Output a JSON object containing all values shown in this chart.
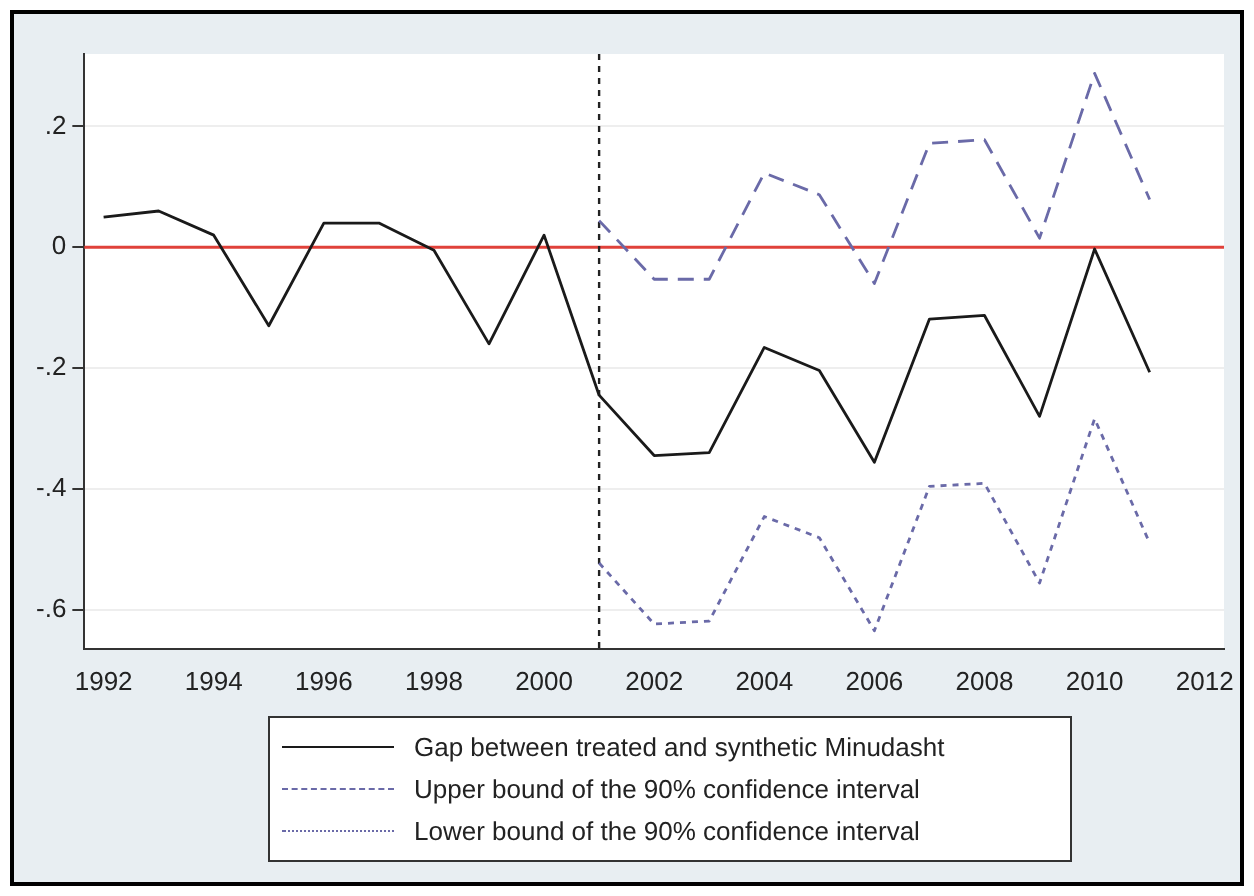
{
  "chart_data": {
    "type": "line",
    "x": [
      1992,
      1993,
      1994,
      1995,
      1996,
      1997,
      1998,
      1999,
      2000,
      2001,
      2002,
      2003,
      2004,
      2005,
      2006,
      2007,
      2008,
      2009,
      2010,
      2011
    ],
    "xlim": [
      1991.65,
      2012.35
    ],
    "xticks": [
      1992,
      1994,
      1996,
      1998,
      2000,
      2002,
      2004,
      2006,
      2008,
      2010,
      2012
    ],
    "ylim": [
      -0.665,
      0.32
    ],
    "yticks": [
      {
        "value": -0.6,
        "label": "-.6"
      },
      {
        "value": -0.4,
        "label": "-.4"
      },
      {
        "value": -0.2,
        "label": "-.2"
      },
      {
        "value": 0,
        "label": "0"
      },
      {
        "value": 0.2,
        "label": ".2"
      }
    ],
    "grid": "y",
    "legend": "bottom",
    "marker": "none",
    "ref_lines": [
      {
        "axis": "y",
        "value": 0,
        "color": "#e0413a",
        "line_style": "solid"
      },
      {
        "axis": "x",
        "value": 2001,
        "color": "#222222",
        "line_style": "dotted"
      }
    ],
    "series": [
      {
        "name": "Gap between treated and synthetic Minudasht",
        "color": "#1a1a1a",
        "line_style": "solid",
        "values": [
          0.05,
          0.06,
          0.02,
          -0.13,
          0.04,
          0.04,
          -0.005,
          -0.16,
          0.02,
          -0.245,
          -0.345,
          -0.34,
          -0.166,
          -0.204,
          -0.356,
          -0.119,
          -0.113,
          -0.28,
          -0.003,
          -0.207
        ]
      },
      {
        "name": "Upper bound of the 90% confidence interval",
        "color": "#6a6aa8",
        "line_style": "dashed",
        "x": [
          2001,
          2002,
          2003,
          2004,
          2005,
          2006,
          2007,
          2008,
          2009,
          2010,
          2011
        ],
        "values": [
          0.044,
          -0.053,
          -0.053,
          0.123,
          0.087,
          -0.06,
          0.172,
          0.178,
          0.015,
          0.288,
          0.079
        ]
      },
      {
        "name": "Lower bound of the 90% confidence interval",
        "color": "#6a6aa8",
        "line_style": "dotted",
        "x": [
          2001,
          2002,
          2003,
          2004,
          2005,
          2006,
          2007,
          2008,
          2009,
          2010,
          2011
        ],
        "values": [
          -0.523,
          -0.624,
          -0.619,
          -0.446,
          -0.481,
          -0.635,
          -0.396,
          -0.391,
          -0.556,
          -0.284,
          -0.49
        ]
      }
    ]
  }
}
